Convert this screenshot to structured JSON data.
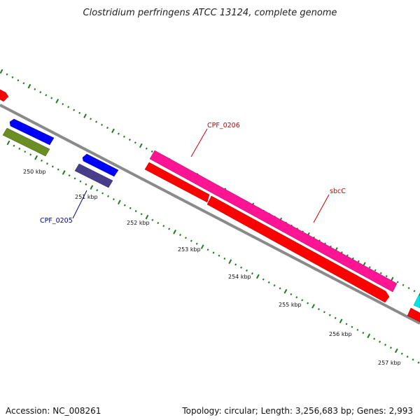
{
  "title": "Clostridium perfringens ATCC 13124, complete genome",
  "footer": {
    "accession": "Accession: NC_008261",
    "stats": "Topology: circular; Length: 3,256,683 bp; Genes: 2,993"
  },
  "colors": {
    "backbone": "#8a8a8a",
    "tick": "#1f7a1f",
    "cds_forward": "#ff1493",
    "cds_reverse": "#ff0000",
    "blue": "#0000ff",
    "olive": "#6b8e23",
    "slate": "#483d8b",
    "cyan": "#00e5e5",
    "label_red": "#cc0000",
    "label_blue": "#00008b"
  },
  "scale": {
    "unit": "kbp",
    "ticks": [
      {
        "value": 250,
        "label": "250 kbp"
      },
      {
        "value": 251,
        "label": "251 kbp"
      },
      {
        "value": 252,
        "label": "252 kbp"
      },
      {
        "value": 253,
        "label": "253 kbp"
      },
      {
        "value": 254,
        "label": "254 kbp"
      },
      {
        "value": 255,
        "label": "255 kbp"
      },
      {
        "value": 256,
        "label": "256 kbp"
      },
      {
        "value": 257,
        "label": "257 kbp"
      }
    ]
  },
  "genes": [
    {
      "name": "CPF_0206",
      "color": "cds_forward",
      "labeled": true
    },
    {
      "name": "sbcC",
      "color": "cds_reverse",
      "labeled": true
    },
    {
      "name": "CPF_0205",
      "color": "slate",
      "labeled": true
    }
  ]
}
